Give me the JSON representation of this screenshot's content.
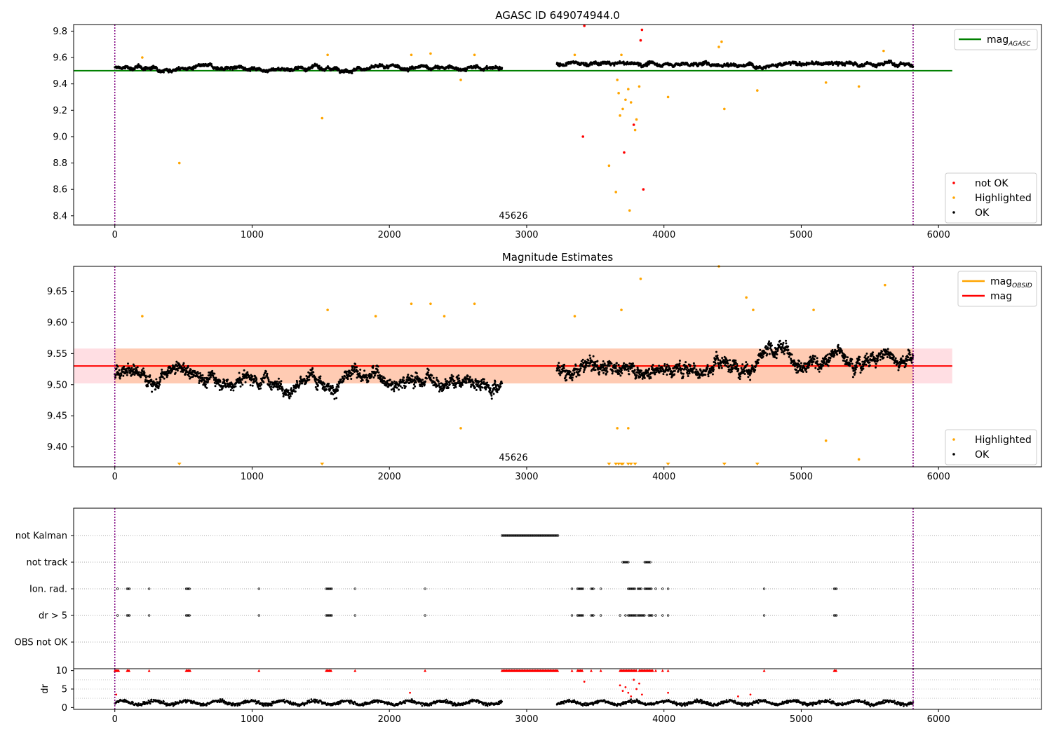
{
  "figure": {
    "title1": "AGASC ID 649074944.0",
    "title2": "Magnitude Estimates",
    "obsid_label": "45626"
  },
  "chart_data": [
    {
      "id": "agasc_mag",
      "type": "scatter",
      "title": "AGASC ID 649074944.0",
      "xlim": [
        -300,
        6750
      ],
      "ylim": [
        8.33,
        9.85
      ],
      "x_ticks": [
        "0",
        "1000",
        "2000",
        "3000",
        "4000",
        "5000",
        "6000"
      ],
      "y_ticks": [
        "8.4",
        "8.6",
        "8.8",
        "9.0",
        "9.2",
        "9.4",
        "9.6",
        "9.8"
      ],
      "reference_lines": [
        {
          "name": "mag_AGASC",
          "label": "mag",
          "sub": "AGASC",
          "y": 9.5,
          "x_range": [
            -300,
            6100
          ],
          "color": "#008000"
        }
      ],
      "obs_boundaries": [
        0,
        5815
      ],
      "ok_segments": [
        {
          "x_range": [
            0,
            2820
          ],
          "base": 9.52,
          "noise": 0.02
        },
        {
          "x_range": [
            3220,
            5815
          ],
          "base": 9.55,
          "noise": 0.02
        }
      ],
      "highlighted_points": [
        [
          200,
          9.6
        ],
        [
          470,
          8.8
        ],
        [
          1510,
          9.14
        ],
        [
          1550,
          9.62
        ],
        [
          2160,
          9.62
        ],
        [
          2300,
          9.63
        ],
        [
          2520,
          9.43
        ],
        [
          2620,
          9.62
        ],
        [
          3350,
          9.62
        ],
        [
          3600,
          8.78
        ],
        [
          3650,
          8.58
        ],
        [
          3660,
          9.43
        ],
        [
          3670,
          9.33
        ],
        [
          3680,
          9.16
        ],
        [
          3690,
          9.62
        ],
        [
          3700,
          9.21
        ],
        [
          3720,
          9.28
        ],
        [
          3740,
          9.36
        ],
        [
          3750,
          8.44
        ],
        [
          3760,
          9.26
        ],
        [
          3790,
          9.05
        ],
        [
          3800,
          9.13
        ],
        [
          3820,
          9.38
        ],
        [
          4030,
          9.3
        ],
        [
          4400,
          9.68
        ],
        [
          4420,
          9.72
        ],
        [
          4440,
          9.21
        ],
        [
          4680,
          9.35
        ],
        [
          5180,
          9.41
        ],
        [
          5420,
          9.38
        ],
        [
          5600,
          9.65
        ]
      ],
      "not_ok_points": [
        [
          3410,
          9.0
        ],
        [
          3420,
          9.84
        ],
        [
          3710,
          8.88
        ],
        [
          3780,
          9.09
        ],
        [
          3830,
          9.73
        ],
        [
          3840,
          9.81
        ],
        [
          3850,
          8.6
        ]
      ],
      "legend": [
        {
          "label": "not OK",
          "color": "#ff0000"
        },
        {
          "label": "Highlighted",
          "color": "#ffa500"
        },
        {
          "label": "OK",
          "color": "#000000"
        }
      ],
      "annotation": "45626"
    },
    {
      "id": "mag_estimates",
      "type": "scatter",
      "title": "Magnitude Estimates",
      "xlim": [
        -300,
        6750
      ],
      "ylim": [
        9.368,
        9.69
      ],
      "x_ticks": [
        "0",
        "1000",
        "2000",
        "3000",
        "4000",
        "5000",
        "6000"
      ],
      "y_ticks": [
        "9.40",
        "9.45",
        "9.50",
        "9.55",
        "9.60",
        "9.65"
      ],
      "reference_lines": [
        {
          "name": "mag_OBSID",
          "label": "mag",
          "sub": "OBSID",
          "y": 9.53,
          "x_range": [
            0,
            5815
          ],
          "color": "#ffa500"
        },
        {
          "name": "mag",
          "label": "mag",
          "y": 9.53,
          "x_range": [
            -300,
            6100
          ],
          "color": "#ff0000"
        }
      ],
      "bands": [
        {
          "color": "pink",
          "y_range": [
            9.502,
            9.558
          ],
          "x_range": [
            -300,
            6100
          ]
        },
        {
          "color": "peach",
          "y_range": [
            9.502,
            9.558
          ],
          "x_range": [
            0,
            5815
          ]
        }
      ],
      "highlighted_points": [
        [
          200,
          9.61
        ],
        [
          1550,
          9.62
        ],
        [
          1900,
          9.61
        ],
        [
          2160,
          9.63
        ],
        [
          2300,
          9.63
        ],
        [
          2400,
          9.61
        ],
        [
          2520,
          9.43
        ],
        [
          2620,
          9.63
        ],
        [
          3350,
          9.61
        ],
        [
          3660,
          9.43
        ],
        [
          3690,
          9.62
        ],
        [
          3740,
          9.43
        ],
        [
          3830,
          9.67
        ],
        [
          4400,
          9.69
        ],
        [
          4600,
          9.64
        ],
        [
          4650,
          9.62
        ],
        [
          5090,
          9.62
        ],
        [
          5180,
          9.41
        ],
        [
          5420,
          9.38
        ],
        [
          5610,
          9.66
        ]
      ],
      "below_range_markers": [
        470,
        1510,
        3600,
        3650,
        3670,
        3690,
        3700,
        3740,
        3760,
        3790,
        4030,
        4440,
        4680
      ],
      "legend": [
        {
          "label": "Highlighted",
          "color": "#ffa500"
        },
        {
          "label": "OK",
          "color": "#000000"
        }
      ],
      "annotation": "45626"
    },
    {
      "id": "flags",
      "type": "scatter",
      "categories": [
        "not Kalman",
        "not track",
        "Ion. rad.",
        "dr > 5",
        "OBS not OK"
      ],
      "intervals": {
        "not Kalman": [
          [
            2820,
            3230
          ]
        ],
        "not track": [
          [
            3700,
            3740
          ],
          [
            3860,
            3900
          ]
        ],
        "Ion. rad.": [
          [
            20
          ],
          [
            90,
            110
          ],
          [
            250
          ],
          [
            520,
            550
          ],
          [
            1050
          ],
          [
            1540,
            1580
          ],
          [
            1750
          ],
          [
            2260
          ],
          [
            3330
          ],
          [
            3370,
            3410
          ],
          [
            3470,
            3490
          ],
          [
            3540
          ],
          [
            3740,
            3790
          ],
          [
            3810,
            3840
          ],
          [
            3860,
            3910
          ],
          [
            3940
          ],
          [
            3990
          ],
          [
            4030
          ],
          [
            4730
          ],
          [
            5240,
            5260
          ]
        ],
        "dr > 5": [
          [
            20
          ],
          [
            90,
            110
          ],
          [
            250
          ],
          [
            520,
            550
          ],
          [
            1050
          ],
          [
            1540,
            1580
          ],
          [
            1750
          ],
          [
            2260
          ],
          [
            3330
          ],
          [
            3370,
            3410
          ],
          [
            3470,
            3490
          ],
          [
            3540
          ],
          [
            3680
          ],
          [
            3720
          ],
          [
            3740,
            3800
          ],
          [
            3810,
            3860
          ],
          [
            3890,
            3920
          ],
          [
            3940
          ],
          [
            3990
          ],
          [
            4030
          ],
          [
            4730
          ],
          [
            5240,
            5260
          ]
        ],
        "OBS not OK": []
      }
    },
    {
      "id": "dr",
      "type": "scatter",
      "ylabel": "dr",
      "ylim": [
        -0.5,
        10.5
      ],
      "y_ticks": [
        "0",
        "5",
        "10"
      ],
      "x_ticks": [
        "0",
        "1000",
        "2000",
        "3000",
        "4000",
        "5000",
        "6000"
      ],
      "xlim": [
        -300,
        6750
      ],
      "clipped_at": 10,
      "ok_segments": [
        [
          0,
          2820
        ],
        [
          3220,
          5815
        ]
      ],
      "clipped_x": [
        [
          0,
          30
        ],
        [
          90,
          110
        ],
        [
          250
        ],
        [
          520,
          550
        ],
        [
          1050
        ],
        [
          1540,
          1580
        ],
        [
          1750
        ],
        [
          2260
        ],
        [
          2820,
          3230
        ],
        [
          3330
        ],
        [
          3370,
          3410
        ],
        [
          3470
        ],
        [
          3540
        ],
        [
          3680,
          3800
        ],
        [
          3820,
          3920
        ],
        [
          3940
        ],
        [
          3990
        ],
        [
          4030
        ],
        [
          4730
        ],
        [
          5240,
          5260
        ]
      ],
      "high_points": [
        [
          10,
          3.5
        ],
        [
          3420,
          7
        ],
        [
          3680,
          6
        ],
        [
          3700,
          4.5
        ],
        [
          3720,
          5.5
        ],
        [
          3740,
          4
        ],
        [
          3760,
          3
        ],
        [
          3780,
          7.5
        ],
        [
          3800,
          5
        ],
        [
          3820,
          6.5
        ],
        [
          3840,
          3.5
        ],
        [
          4030,
          4
        ],
        [
          2150,
          4
        ],
        [
          4540,
          3
        ],
        [
          4630,
          3.5
        ]
      ]
    }
  ]
}
